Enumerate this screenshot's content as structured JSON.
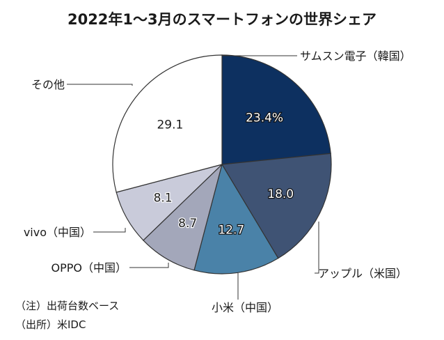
{
  "chart_data": {
    "type": "pie",
    "title": "2022年1～3月のスマートフォンの世界シェア",
    "unit": "%",
    "slices": [
      {
        "label": "サムスン電子（韓国）",
        "value": 23.4,
        "value_text": "23.4%",
        "color": "#0d3060",
        "text_color": "#ffffff"
      },
      {
        "label": "アップル（米国）",
        "value": 18.0,
        "value_text": "18.0",
        "color": "#3f5374",
        "text_color": "#ffffff"
      },
      {
        "label": "小米（中国）",
        "value": 12.7,
        "value_text": "12.7",
        "color": "#4a82a8",
        "text_color": "#ffffff"
      },
      {
        "label": "OPPO（中国）",
        "value": 8.7,
        "value_text": "8.7",
        "color": "#a3a7ba",
        "text_color": "#1a1a1a"
      },
      {
        "label": "vivo（中国）",
        "value": 8.1,
        "value_text": "8.1",
        "color": "#c9cbda",
        "text_color": "#1a1a1a"
      },
      {
        "label": "その他",
        "value": 29.1,
        "value_text": "29.1",
        "color": "#ffffff",
        "text_color": "#1a1a1a"
      }
    ],
    "notes": [
      "（注）出荷台数ベース",
      "（出所）米IDC"
    ]
  }
}
